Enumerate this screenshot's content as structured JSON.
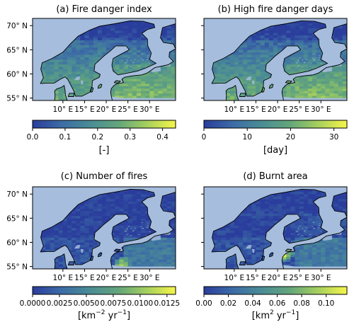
{
  "figure": {
    "panels": [
      {
        "id": "a",
        "title": "(a) Fire danger index",
        "colorbar": {
          "ticks": [
            "0.0",
            "0.1",
            "0.2",
            "0.3",
            "0.4"
          ],
          "tick_values": [
            0.0,
            0.1,
            0.2,
            0.3,
            0.4
          ],
          "vmin": 0.0,
          "vmax": 0.44,
          "unit": "[-]"
        },
        "has_y_labels": true,
        "hotspots": []
      },
      {
        "id": "b",
        "title": "(b) High fire danger days",
        "colorbar": {
          "ticks": [
            "0",
            "10",
            "20",
            "30"
          ],
          "tick_values": [
            0,
            10,
            20,
            30
          ],
          "vmin": 0,
          "vmax": 33,
          "unit": "[day]"
        },
        "has_y_labels": false,
        "hotspots": []
      },
      {
        "id": "c",
        "title": "(c) Number of fires",
        "colorbar": {
          "ticks": [
            "0.0000",
            "0.0025",
            "0.0050",
            "0.0075",
            "0.0100",
            "0.0125"
          ],
          "tick_values": [
            0.0,
            0.0025,
            0.005,
            0.0075,
            0.01,
            0.0125
          ],
          "vmin": 0.0,
          "vmax": 0.0133,
          "unit_parts": [
            "[km",
            "−2",
            " yr",
            "−1",
            "]"
          ]
        },
        "has_y_labels": true,
        "hotspots": [
          {
            "lon": 24,
            "lat": 55.5,
            "level": 0.9
          }
        ]
      },
      {
        "id": "d",
        "title": "(d) Burnt area",
        "colorbar": {
          "ticks": [
            "0.00",
            "0.02",
            "0.04",
            "0.06",
            "0.08",
            "0.10"
          ],
          "tick_values": [
            0.0,
            0.02,
            0.04,
            0.06,
            0.08,
            0.1
          ],
          "vmin": 0.0,
          "vmax": 0.117,
          "unit_parts": [
            "[km",
            "2",
            " yr",
            "−1",
            "]"
          ]
        },
        "has_y_labels": false,
        "hotspots": [
          {
            "lon": 21.5,
            "lat": 57.5,
            "level": 0.85
          }
        ]
      }
    ],
    "x_ticks": [
      {
        "lon": 10,
        "label": "10° E"
      },
      {
        "lon": 15,
        "label": "15° E"
      },
      {
        "lon": 20,
        "label": "20° E"
      },
      {
        "lon": 25,
        "label": "25° E"
      },
      {
        "lon": 30,
        "label": "30° E"
      }
    ],
    "y_ticks": [
      {
        "lat": 70,
        "label": "70° N"
      },
      {
        "lat": 65,
        "label": "65° N"
      },
      {
        "lat": 60,
        "label": "60° N"
      },
      {
        "lat": 55,
        "label": "55° N"
      }
    ],
    "colors": {
      "ocean": "#a6bddd",
      "coastline": "#000000",
      "colormap": [
        "#2a3d9c",
        "#3c6ba6",
        "#4a8c95",
        "#63a57b",
        "#a5d05d",
        "#f6f54a"
      ]
    }
  },
  "chart_data": [
    {
      "type": "heatmap",
      "title": "(a) Fire danger index",
      "xlabel": "",
      "ylabel": "",
      "colorbar_label": "[-]",
      "xlim": [
        3,
        36
      ],
      "ylim": [
        54.5,
        71.5
      ],
      "colorbar_range": [
        0.0,
        0.44
      ]
    },
    {
      "type": "heatmap",
      "title": "(b) High fire danger days",
      "xlabel": "",
      "ylabel": "",
      "colorbar_label": "[day]",
      "xlim": [
        3,
        36
      ],
      "ylim": [
        54.5,
        71.5
      ],
      "colorbar_range": [
        0,
        33
      ]
    },
    {
      "type": "heatmap",
      "title": "(c) Number of fires",
      "xlabel": "",
      "ylabel": "",
      "colorbar_label": "[km−2 yr−1]",
      "xlim": [
        3,
        36
      ],
      "ylim": [
        54.5,
        71.5
      ],
      "colorbar_range": [
        0.0,
        0.0133
      ]
    },
    {
      "type": "heatmap",
      "title": "(d) Burnt area",
      "xlabel": "",
      "ylabel": "",
      "colorbar_label": "[km2 yr−1]",
      "xlim": [
        3,
        36
      ],
      "ylim": [
        54.5,
        71.5
      ],
      "colorbar_range": [
        0.0,
        0.117
      ]
    }
  ]
}
